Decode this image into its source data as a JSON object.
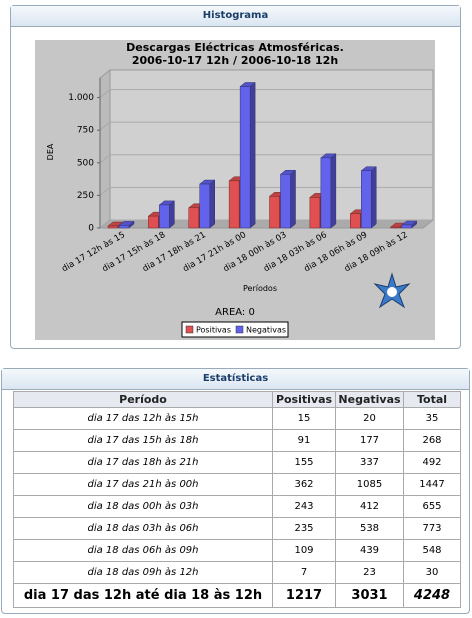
{
  "histogram_panel": {
    "title": "Histograma"
  },
  "chart_data": {
    "type": "bar",
    "title": [
      "Descargas Eléctricas Atmosféricas.",
      "2006-10-17 12h / 2006-10-18 12h"
    ],
    "y_label": "DEA",
    "x_label": "Períodos",
    "annotation": "AREA: 0",
    "categories": [
      "dia 17 12h às 15",
      "dia 17 15h às 18",
      "dia 17 18h às 21",
      "dia 17 21h às 00",
      "dia 18 00h às 03",
      "dia 18 03h às 06",
      "dia 18 06h às 09",
      "dia 18 09h às 12"
    ],
    "series": [
      {
        "name": "Positivas",
        "color": "#e05050",
        "values": [
          15,
          91,
          155,
          362,
          243,
          235,
          109,
          7
        ]
      },
      {
        "name": "Negativas",
        "color": "#6262ea",
        "values": [
          20,
          177,
          337,
          1085,
          412,
          538,
          439,
          23
        ]
      }
    ],
    "ylim": [
      0,
      1150
    ],
    "yticks": [
      0,
      250,
      500,
      750,
      {
        "value": 1000,
        "label": "1.000"
      }
    ],
    "grid": true
  },
  "stats_panel": {
    "title": "Estatísticas",
    "table": {
      "header": [
        "Período",
        "Positivas",
        "Negativas",
        "Total"
      ],
      "rows": [
        [
          "dia 17 das 12h às 15h",
          15,
          20,
          35
        ],
        [
          "dia 17 das 15h às 18h",
          91,
          177,
          268
        ],
        [
          "dia 17 das 18h às 21h",
          155,
          337,
          492
        ],
        [
          "dia 17 das 21h às 00h",
          362,
          1085,
          1447
        ],
        [
          "dia 18 das 00h às 03h",
          243,
          412,
          655
        ],
        [
          "dia 18 das 03h às 06h",
          235,
          538,
          773
        ],
        [
          "dia 18 das 06h às 09h",
          109,
          439,
          548
        ],
        [
          "dia 18 das 09h às 12h",
          7,
          23,
          30
        ]
      ],
      "total_row": [
        "dia 17 das 12h até dia 18 às 12h",
        1217,
        3031,
        4248
      ]
    }
  }
}
